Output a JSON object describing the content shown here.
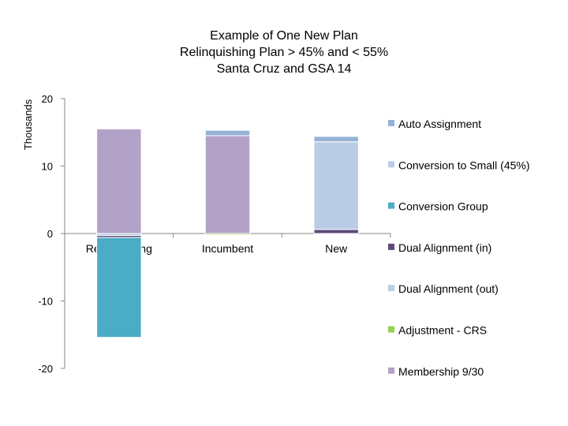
{
  "chart_data": {
    "type": "bar",
    "stacked": true,
    "title": [
      "Example of One New Plan",
      "Relinquishing Plan > 45% and < 55%",
      "Santa Cruz and GSA 14"
    ],
    "xlabel": "",
    "ylabel": "Thousands",
    "ylim": [
      -20,
      20
    ],
    "yticks": [
      20,
      10,
      0,
      -10,
      -20
    ],
    "ytick_labels": [
      "20",
      "10",
      "0",
      "-10",
      "-20"
    ],
    "grid": false,
    "legend_position": "right",
    "categories": [
      "Relinquishing",
      "Incumbent",
      "New"
    ],
    "series": [
      {
        "name": "Membership 9/30",
        "color": "#B3A2C7",
        "values": [
          15.5,
          14.5,
          0
        ]
      },
      {
        "name": "Adjustment - CRS",
        "color": "#92D050",
        "values": [
          0,
          -0.2,
          0
        ]
      },
      {
        "name": "Dual Alignment (out)",
        "color": "#B9CDE5",
        "values": [
          -0.3,
          0,
          0
        ]
      },
      {
        "name": "Dual Alignment (in)",
        "color": "#604A7B",
        "values": [
          -0.3,
          0,
          0.6
        ]
      },
      {
        "name": "Conversion Group",
        "color": "#4BACC6",
        "values": [
          -14.8,
          0,
          0
        ]
      },
      {
        "name": "Conversion to Small (45%)",
        "color": "#B9CDE5",
        "values": [
          0,
          0,
          13
        ]
      },
      {
        "name": "Auto Assignment",
        "color": "#95B3D7",
        "values": [
          0,
          0.8,
          0.8
        ]
      }
    ],
    "legend_order": [
      "Auto Assignment",
      "Conversion to Small (45%)",
      "Conversion Group",
      "Dual Alignment (in)",
      "Dual Alignment (out)",
      "Adjustment - CRS",
      "Membership 9/30"
    ]
  }
}
